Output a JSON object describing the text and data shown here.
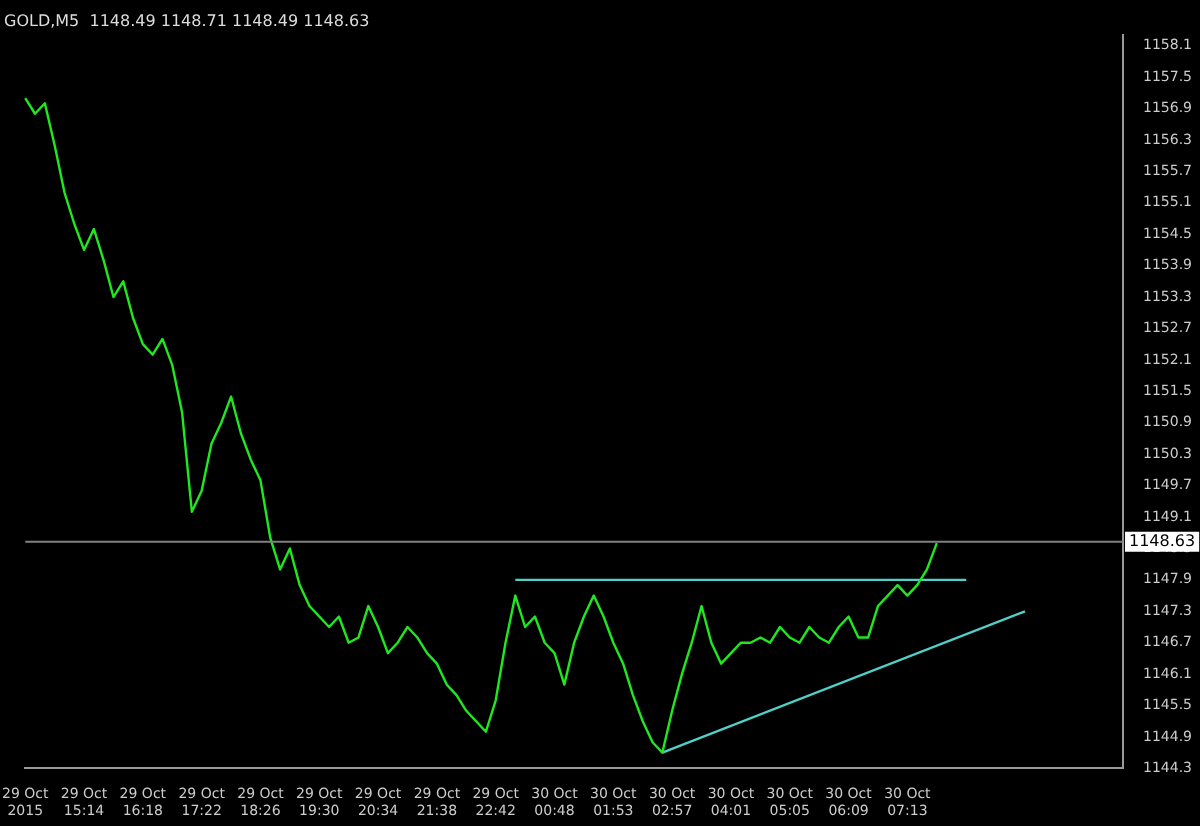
{
  "chart_data": {
    "type": "line",
    "title": "GOLD,M5  1148.49 1148.71 1148.49 1148.63",
    "categories": [
      "29 Oct 2015",
      null,
      null,
      null,
      null,
      null,
      "29 Oct 15:14",
      null,
      null,
      null,
      null,
      null,
      "29 Oct 16:18",
      null,
      null,
      null,
      null,
      null,
      "29 Oct 17:22",
      null,
      null,
      null,
      null,
      null,
      "29 Oct 18:26",
      null,
      null,
      null,
      null,
      null,
      "29 Oct 19:30",
      null,
      null,
      null,
      null,
      null,
      "29 Oct 20:34",
      null,
      null,
      null,
      null,
      null,
      "29 Oct 21:38",
      null,
      null,
      null,
      null,
      null,
      "29 Oct 22:42",
      null,
      null,
      null,
      null,
      null,
      "30 Oct 00:48",
      null,
      null,
      null,
      null,
      null,
      "30 Oct 01:53",
      null,
      null,
      null,
      null,
      null,
      "30 Oct 02:57",
      null,
      null,
      null,
      null,
      null,
      "30 Oct 04:01",
      null,
      null,
      null,
      null,
      null,
      "30 Oct 05:05",
      null,
      null,
      null,
      null,
      null,
      "30 Oct 06:09",
      null,
      null,
      null,
      null,
      null,
      "30 Oct 07:13",
      null,
      null,
      null,
      null,
      null,
      null,
      null,
      null,
      null,
      null,
      null,
      null,
      null,
      null,
      null,
      null,
      null,
      null,
      null,
      null,
      null,
      null
    ],
    "series": [
      {
        "type": "line",
        "color": "#1ee81e",
        "values": [
          1157.1,
          1156.8,
          1157.0,
          1156.2,
          1155.3,
          1154.7,
          1154.2,
          1154.6,
          1154.0,
          1153.3,
          1153.6,
          1152.9,
          1152.4,
          1152.2,
          1152.5,
          1152.0,
          1151.1,
          1149.2,
          1149.6,
          1150.5,
          1150.9,
          1151.4,
          1150.7,
          1150.2,
          1149.8,
          1148.7,
          1148.1,
          1148.5,
          1147.8,
          1147.4,
          1147.2,
          1147.0,
          1147.2,
          1146.7,
          1146.8,
          1147.4,
          1147.0,
          1146.5,
          1146.7,
          1147.0,
          1146.8,
          1146.5,
          1146.3,
          1145.9,
          1145.7,
          1145.4,
          1145.2,
          1145.0,
          1145.6,
          1146.7,
          1147.6,
          1147.0,
          1147.2,
          1146.7,
          1146.5,
          1145.9,
          1146.7,
          1147.2,
          1147.6,
          1147.2,
          1146.7,
          1146.3,
          1145.7,
          1145.2,
          1144.8,
          1144.6,
          1145.4,
          1146.1,
          1146.7,
          1147.4,
          1146.7,
          1146.3,
          1146.5,
          1146.7,
          1146.7,
          1146.8,
          1146.7,
          1147.0,
          1146.8,
          1146.7,
          1147.0,
          1146.8,
          1146.7,
          1147.0,
          1147.2,
          1146.8,
          1146.8,
          1147.4,
          1147.6,
          1147.8,
          1147.6,
          1147.8,
          1148.1,
          1148.6,
          null,
          null,
          null,
          null,
          null,
          null,
          null,
          null,
          null,
          null,
          null,
          null,
          null,
          null,
          null,
          null,
          null,
          null,
          null
        ]
      },
      {
        "type": "line",
        "color": "#4fd0c8",
        "values": [
          null,
          null,
          null,
          null,
          null,
          null,
          null,
          null,
          null,
          null,
          null,
          null,
          null,
          null,
          null,
          null,
          null,
          null,
          null,
          null,
          null,
          null,
          null,
          null,
          null,
          null,
          null,
          null,
          null,
          null,
          null,
          null,
          null,
          null,
          null,
          null,
          null,
          null,
          null,
          null,
          null,
          null,
          null,
          null,
          null,
          null,
          null,
          null,
          null,
          null,
          1147.9,
          null,
          null,
          null,
          null,
          null,
          null,
          null,
          null,
          null,
          null,
          null,
          null,
          null,
          null,
          null,
          null,
          null,
          null,
          null,
          null,
          null,
          null,
          null,
          null,
          null,
          null,
          null,
          null,
          null,
          null,
          null,
          null,
          null,
          null,
          null,
          null,
          null,
          null,
          null,
          null,
          null,
          null,
          null,
          null,
          null,
          1147.9,
          null,
          null,
          null,
          null,
          null,
          null,
          null,
          null,
          null,
          null,
          null,
          null,
          null,
          null,
          null,
          null
        ]
      },
      {
        "type": "line",
        "color": "#4fd0c8",
        "values": [
          null,
          null,
          null,
          null,
          null,
          null,
          null,
          null,
          null,
          null,
          null,
          null,
          null,
          null,
          null,
          null,
          null,
          null,
          null,
          null,
          null,
          null,
          null,
          null,
          null,
          null,
          null,
          null,
          null,
          null,
          null,
          null,
          null,
          null,
          null,
          null,
          null,
          null,
          null,
          null,
          null,
          null,
          null,
          null,
          null,
          null,
          null,
          null,
          null,
          null,
          null,
          null,
          null,
          null,
          null,
          null,
          null,
          null,
          null,
          null,
          null,
          null,
          null,
          null,
          null,
          1144.6,
          null,
          null,
          null,
          null,
          null,
          null,
          null,
          null,
          null,
          null,
          null,
          null,
          null,
          null,
          null,
          null,
          null,
          null,
          null,
          null,
          null,
          null,
          null,
          null,
          null,
          null,
          null,
          null,
          null,
          null,
          null,
          null,
          null,
          null,
          null,
          null,
          1147.3,
          null,
          null,
          null,
          null,
          null,
          null,
          null,
          null,
          null,
          null
        ]
      }
    ],
    "ylim": [
      1144.3,
      1158.3
    ],
    "yticks": [
      1144.3,
      1144.9,
      1145.5,
      1146.1,
      1146.7,
      1147.3,
      1147.9,
      1148.5,
      1149.1,
      1149.7,
      1150.3,
      1150.9,
      1151.5,
      1152.1,
      1152.7,
      1153.3,
      1153.9,
      1154.5,
      1155.1,
      1155.7,
      1156.3,
      1156.9,
      1157.5,
      1158.1
    ],
    "ref_lines": [
      {
        "axis": "y",
        "value": 1148.63,
        "label": "1148.63",
        "color": "#808080"
      }
    ],
    "grid": false,
    "legend": false,
    "marker": "none",
    "line_style": "solid"
  }
}
